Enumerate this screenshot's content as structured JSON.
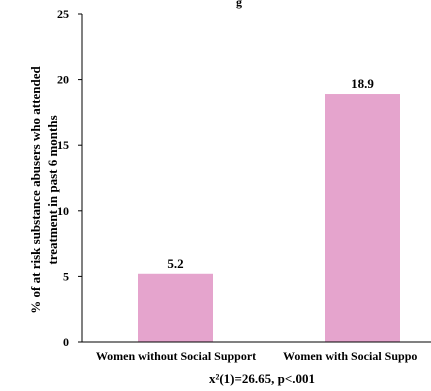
{
  "chart_data": {
    "type": "bar",
    "top_text": "g",
    "categories": [
      "Women without Social Support",
      "Women with Social Suppo"
    ],
    "values": [
      5.2,
      18.9
    ],
    "data_labels": [
      "5.2",
      "18.9"
    ],
    "ylabel_line1": "% of at risk substance abusers who attended",
    "ylabel_line2": "treatment in past 6 months",
    "xlabel": "x²(1)=26.65, p<.001",
    "ylim": [
      0,
      25
    ],
    "yticks": [
      "0",
      "5",
      "10",
      "15",
      "20",
      "25"
    ],
    "ytick_values": [
      0,
      5,
      10,
      15,
      20,
      25
    ],
    "bar_color": "#E5A4CD",
    "grid": false,
    "legend": "none"
  }
}
